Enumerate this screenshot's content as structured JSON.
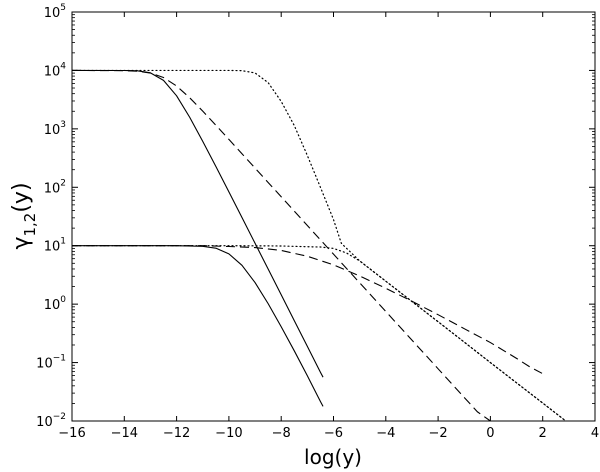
{
  "chart_data": {
    "type": "line",
    "xlabel": "log(y)",
    "ylabel": {
      "main": "γ",
      "sub": "1,2",
      "suffix": "(y)"
    },
    "xlim": [
      -16,
      4
    ],
    "ylim": [
      0.01,
      100000
    ],
    "yscale": "log",
    "grid": false,
    "x_ticks": [
      -16,
      -14,
      -12,
      -10,
      -8,
      -6,
      -4,
      -2,
      0,
      2,
      4
    ],
    "x_tick_labels": [
      "−16",
      "−14",
      "−12",
      "−10",
      "−8",
      "−6",
      "−4",
      "−2",
      "0",
      "2",
      "4"
    ],
    "y_ticks": [
      0.01,
      0.1,
      1,
      10,
      100,
      1000,
      10000,
      100000
    ],
    "y_tick_labels": [
      {
        "base": "10",
        "exp": "−2"
      },
      {
        "base": "10",
        "exp": "−1"
      },
      {
        "base": "10",
        "exp": "0"
      },
      {
        "base": "10",
        "exp": "1"
      },
      {
        "base": "10",
        "exp": "2"
      },
      {
        "base": "10",
        "exp": "3"
      },
      {
        "base": "10",
        "exp": "4"
      },
      {
        "base": "10",
        "exp": "5"
      }
    ],
    "series": [
      {
        "style": "solid",
        "color": "#000000",
        "points": [
          [
            -16,
            10000
          ],
          [
            -14,
            9977
          ],
          [
            -13.5,
            9841
          ],
          [
            -13,
            9095
          ],
          [
            -12.5,
            6767
          ],
          [
            -12,
            3676
          ],
          [
            -11.5,
            1579
          ],
          [
            -11,
            611
          ],
          [
            -10.5,
            228
          ],
          [
            -10,
            83.5
          ],
          [
            -9.5,
            30.4
          ],
          [
            -9,
            11.0
          ],
          [
            -8.5,
            3.99
          ],
          [
            -8,
            1.45
          ],
          [
            -7.5,
            0.522
          ],
          [
            -7,
            0.189
          ],
          [
            -6.5,
            0.0684
          ],
          [
            -6.4,
            0.0562
          ]
        ]
      },
      {
        "style": "dashed",
        "color": "#000000",
        "points": [
          [
            -16,
            10000
          ],
          [
            -14,
            9911
          ],
          [
            -13.5,
            9692
          ],
          [
            -13,
            9025
          ],
          [
            -12.5,
            7569
          ],
          [
            -12,
            5411
          ],
          [
            -11.5,
            3406
          ],
          [
            -11,
            2010
          ],
          [
            -10.5,
            1157
          ],
          [
            -10,
            660
          ],
          [
            -9.5,
            375
          ],
          [
            -9,
            213
          ],
          [
            -8.5,
            121
          ],
          [
            -8,
            68.8
          ],
          [
            -7.5,
            39.1
          ],
          [
            -7,
            22.2
          ],
          [
            -6.5,
            12.6
          ],
          [
            -6,
            7.17
          ],
          [
            -5.5,
            4.08
          ],
          [
            -5,
            2.32
          ],
          [
            -4.5,
            1.32
          ],
          [
            -4,
            0.749
          ],
          [
            -3.5,
            0.426
          ],
          [
            -3,
            0.242
          ],
          [
            -2.5,
            0.138
          ],
          [
            -2,
            0.0782
          ],
          [
            -1.5,
            0.0445
          ],
          [
            -1,
            0.0253
          ],
          [
            -0.5,
            0.0144
          ],
          [
            0,
            0.01
          ]
        ]
      },
      {
        "style": "dotted",
        "color": "#000000",
        "points": [
          [
            -16,
            10000
          ],
          [
            -12,
            10000
          ],
          [
            -10,
            9999
          ],
          [
            -9.5,
            9900
          ],
          [
            -9,
            9050
          ],
          [
            -8.5,
            6190
          ],
          [
            -8,
            2950
          ],
          [
            -7.5,
            1140
          ],
          [
            -7,
            350
          ],
          [
            -6.5,
            100
          ],
          [
            -6,
            28
          ],
          [
            -5.7,
            11
          ],
          [
            -5,
            5.5
          ],
          [
            -4,
            2.47
          ],
          [
            -3,
            1.11
          ],
          [
            -2,
            0.5
          ],
          [
            -1,
            0.224
          ],
          [
            0,
            0.1
          ],
          [
            1,
            0.045
          ],
          [
            2,
            0.0203
          ],
          [
            3,
            0.0091
          ],
          [
            3.3,
            0.0071
          ]
        ]
      },
      {
        "style": "solid",
        "color": "#000000",
        "points": [
          [
            -16,
            10
          ],
          [
            -12,
            10
          ],
          [
            -11,
            9.75
          ],
          [
            -10.5,
            9.08
          ],
          [
            -10,
            7.25
          ],
          [
            -9.5,
            4.62
          ],
          [
            -9,
            2.34
          ],
          [
            -8.5,
            1.02
          ],
          [
            -8,
            0.41
          ],
          [
            -7.5,
            0.159
          ],
          [
            -7,
            0.0594
          ],
          [
            -6.5,
            0.0216
          ],
          [
            -6.4,
            0.0178
          ]
        ]
      },
      {
        "style": "dashed",
        "color": "#000000",
        "points": [
          [
            -16,
            10
          ],
          [
            -11,
            10
          ],
          [
            -10,
            9.7
          ],
          [
            -9,
            9.3
          ],
          [
            -8,
            8.3
          ],
          [
            -7,
            6.6
          ],
          [
            -6,
            4.7
          ],
          [
            -5,
            3.04
          ],
          [
            -4,
            1.87
          ],
          [
            -3,
            1.12
          ],
          [
            -2,
            0.66
          ],
          [
            -1,
            0.38
          ],
          [
            0,
            0.22
          ],
          [
            1,
            0.118
          ],
          [
            1.5,
            0.0849
          ],
          [
            2,
            0.0646
          ]
        ]
      },
      {
        "style": "dotted",
        "color": "#000000",
        "points": [
          [
            -16,
            10
          ],
          [
            -10,
            10
          ],
          [
            -8,
            9.9
          ],
          [
            -7,
            9.6
          ],
          [
            -6.5,
            9.5
          ],
          [
            -6,
            9.0
          ],
          [
            -5.5,
            7.5
          ],
          [
            -5,
            5.5
          ],
          [
            -4,
            2.47
          ],
          [
            -3,
            1.11
          ],
          [
            -2,
            0.5
          ],
          [
            -1,
            0.224
          ],
          [
            0,
            0.1
          ],
          [
            1,
            0.045
          ],
          [
            2,
            0.0203
          ],
          [
            3,
            0.0091
          ],
          [
            3.3,
            0.0071
          ]
        ]
      }
    ]
  }
}
